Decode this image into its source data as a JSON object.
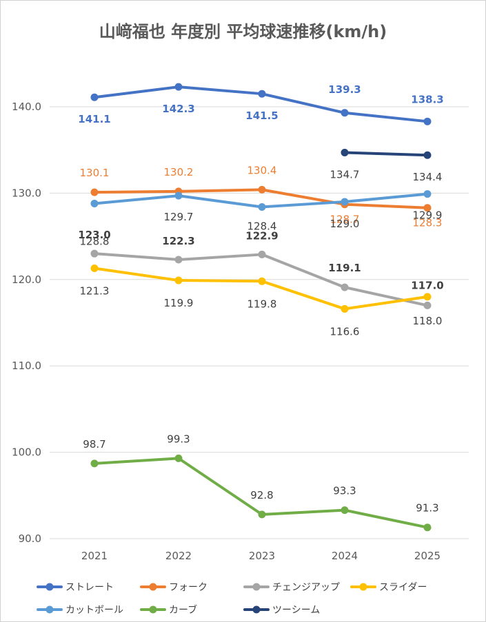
{
  "title": "山﨑福也 年度別 平均球速推移(km/h)",
  "chart_data": {
    "type": "line",
    "title": "山﨑福也 年度別 平均球速推移(km/h)",
    "x": [
      "2021",
      "2022",
      "2023",
      "2024",
      "2025"
    ],
    "ylim": [
      90,
      140
    ],
    "yticks": [
      "90.0",
      "100.0",
      "110.0",
      "120.0",
      "130.0",
      "140.0"
    ],
    "grid": true,
    "legend_position": "bottom",
    "series": [
      {
        "name": "ストレート",
        "color": "#4472C4",
        "values": [
          141.1,
          142.3,
          141.5,
          139.3,
          138.3
        ],
        "labels": [
          "141.1",
          "142.3",
          "141.5",
          "139.3",
          "138.3"
        ],
        "bold": true
      },
      {
        "name": "フォーク",
        "color": "#ED7D31",
        "values": [
          130.1,
          130.2,
          130.4,
          128.7,
          128.3
        ],
        "labels": [
          "130.1",
          "130.2",
          "130.4",
          "128.7",
          "128.3"
        ],
        "bold": false
      },
      {
        "name": "チェンジアップ",
        "color": "#A5A5A5",
        "values": [
          123.0,
          122.3,
          122.9,
          119.1,
          117.0
        ],
        "labels": [
          "123.0",
          "122.3",
          "122.9",
          "119.1",
          "117.0"
        ],
        "bold": true
      },
      {
        "name": "スライダー",
        "color": "#FFC000",
        "values": [
          121.3,
          119.9,
          119.8,
          116.6,
          118.0
        ],
        "labels": [
          "121.3",
          "119.9",
          "119.8",
          "116.6",
          "118.0"
        ],
        "bold": false
      },
      {
        "name": "カットボール",
        "color": "#5B9BD5",
        "values": [
          128.8,
          129.7,
          128.4,
          129.0,
          129.9
        ],
        "labels": [
          "128.8",
          "129.7",
          "128.4",
          "129.0",
          "129.9"
        ],
        "bold": false
      },
      {
        "name": "カーブ",
        "color": "#70AD47",
        "values": [
          98.7,
          99.3,
          92.8,
          93.3,
          91.3
        ],
        "labels": [
          "98.7",
          "99.3",
          "92.8",
          "93.3",
          "91.3"
        ],
        "bold": false
      },
      {
        "name": "ツーシーム",
        "color": "#264478",
        "values": [
          null,
          null,
          null,
          134.7,
          134.4
        ],
        "labels": [
          null,
          null,
          null,
          "134.7",
          "134.4"
        ],
        "bold": false
      }
    ]
  }
}
